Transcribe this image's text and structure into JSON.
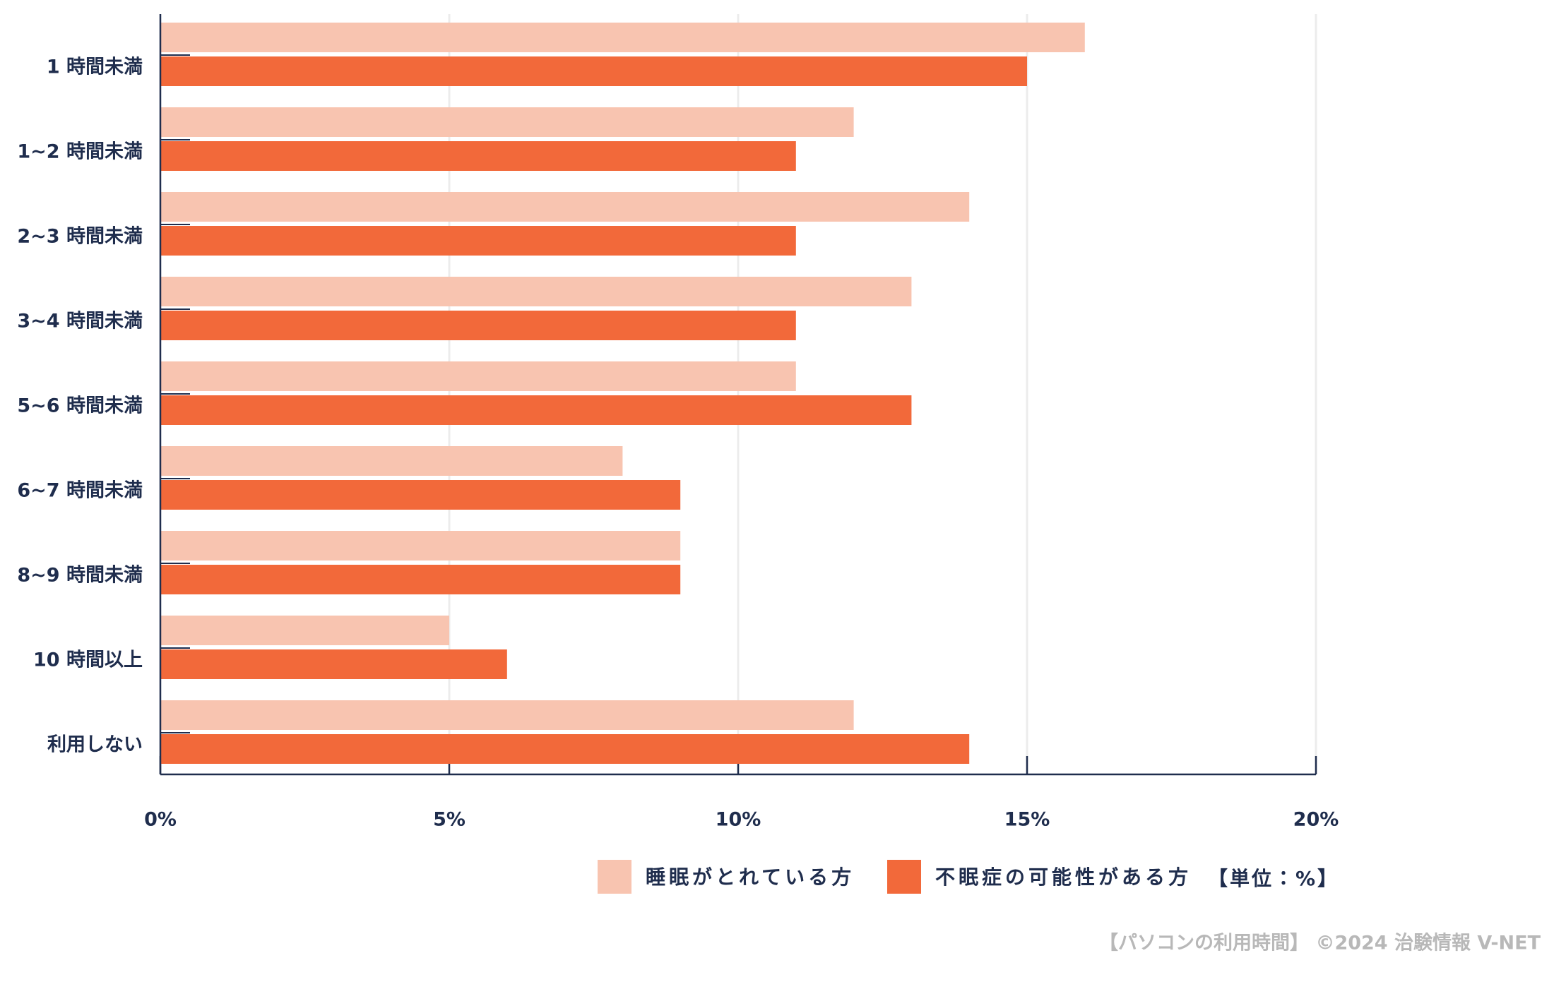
{
  "chart_data": {
    "type": "barh",
    "categories": [
      "1 時間未満",
      "1~2 時間未満",
      "2~3 時間未満",
      "3~4 時間未満",
      "5~6 時間未満",
      "6~7 時間未満",
      "8~9 時間未満",
      "10 時間以上",
      "利用しない"
    ],
    "series": [
      {
        "name": "睡眠がとれている方",
        "color": "#f8c4b0",
        "values": [
          16,
          12,
          14,
          13,
          11,
          8,
          9,
          5,
          12
        ]
      },
      {
        "name": "不眠症の可能性がある方",
        "color": "#f2693a",
        "values": [
          15,
          11,
          11,
          11,
          13,
          9,
          9,
          6,
          14
        ]
      }
    ],
    "xlim": [
      0,
      20
    ],
    "xticks": [
      {
        "value": 0,
        "label": "0%"
      },
      {
        "value": 5,
        "label": "5%"
      },
      {
        "value": 10,
        "label": "10%"
      },
      {
        "value": 15,
        "label": "15%"
      },
      {
        "value": 20,
        "label": "20%"
      }
    ],
    "grid": true,
    "unit_note": "【単位：%】",
    "source": "【パソコンの利用時間】 ©2024 治験情報 V-NET"
  }
}
